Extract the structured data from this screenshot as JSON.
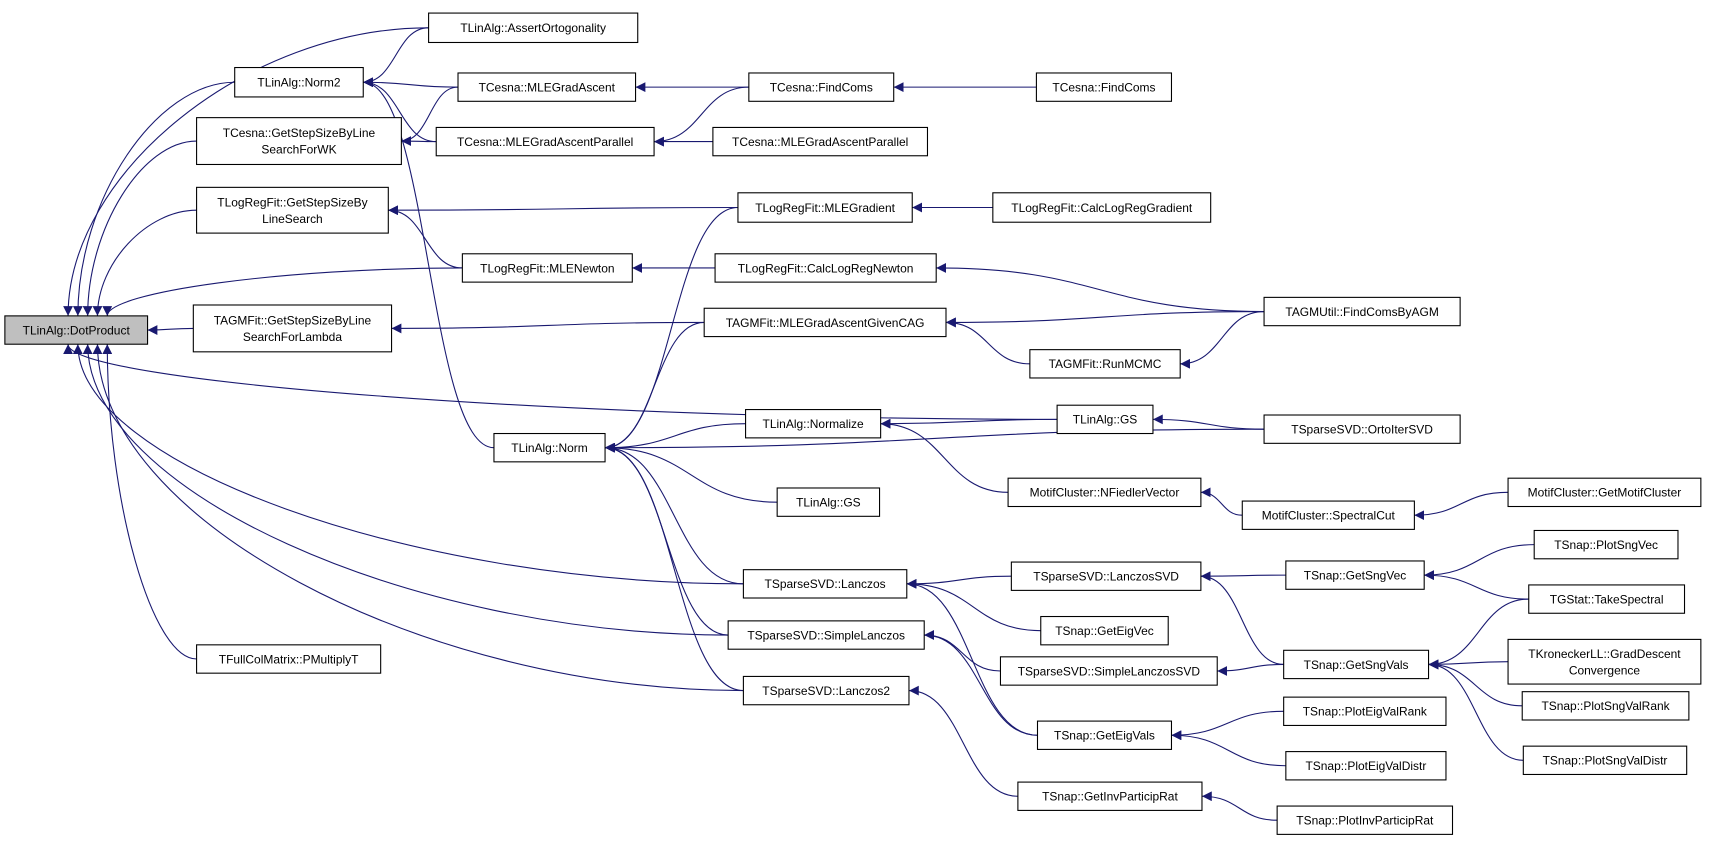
{
  "graph": {
    "type": "caller-graph",
    "root": "dot",
    "colors": {
      "edge": "#191970",
      "root_fill": "#bfbfbf",
      "node_fill": "#ffffff",
      "node_border": "#000000"
    },
    "nodes": [
      {
        "id": "dot",
        "lines": [
          "TLinAlg::DotProduct"
        ]
      },
      {
        "id": "assert",
        "lines": [
          "TLinAlg::AssertOrtogonality"
        ]
      },
      {
        "id": "norm2",
        "lines": [
          "TLinAlg::Norm2"
        ]
      },
      {
        "id": "cesnaStep",
        "lines": [
          "TCesna::GetStepSizeByLine",
          "SearchForWK"
        ]
      },
      {
        "id": "logStep",
        "lines": [
          "TLogRegFit::GetStepSizeBy",
          "LineSearch"
        ]
      },
      {
        "id": "agmStep",
        "lines": [
          "TAGMFit::GetStepSizeByLine",
          "SearchForLambda"
        ]
      },
      {
        "id": "pmult",
        "lines": [
          "TFullColMatrix::PMultiplyT"
        ]
      },
      {
        "id": "norm",
        "lines": [
          "TLinAlg::Norm"
        ]
      },
      {
        "id": "mleGA",
        "lines": [
          "TCesna::MLEGradAscent"
        ]
      },
      {
        "id": "mleGAP",
        "lines": [
          "TCesna::MLEGradAscentParallel"
        ]
      },
      {
        "id": "mleNewton",
        "lines": [
          "TLogRegFit::MLENewton"
        ]
      },
      {
        "id": "findComs1",
        "lines": [
          "TCesna::FindComs"
        ]
      },
      {
        "id": "mleGAP2",
        "lines": [
          "TCesna::MLEGradAscentParallel"
        ]
      },
      {
        "id": "mleGrad",
        "lines": [
          "TLogRegFit::MLEGradient"
        ]
      },
      {
        "id": "calcNewton",
        "lines": [
          "TLogRegFit::CalcLogRegNewton"
        ]
      },
      {
        "id": "mleCAG",
        "lines": [
          "TAGMFit::MLEGradAscentGivenCAG"
        ]
      },
      {
        "id": "normalize",
        "lines": [
          "TLinAlg::Normalize"
        ]
      },
      {
        "id": "gsLow",
        "lines": [
          "TLinAlg::GS"
        ]
      },
      {
        "id": "lanczos",
        "lines": [
          "TSparseSVD::Lanczos"
        ]
      },
      {
        "id": "simpleLanczos",
        "lines": [
          "TSparseSVD::SimpleLanczos"
        ]
      },
      {
        "id": "lanczos2",
        "lines": [
          "TSparseSVD::Lanczos2"
        ]
      },
      {
        "id": "findComs2",
        "lines": [
          "TCesna::FindComs"
        ]
      },
      {
        "id": "calcGrad",
        "lines": [
          "TLogRegFit::CalcLogRegGradient"
        ]
      },
      {
        "id": "runMCMC",
        "lines": [
          "TAGMFit::RunMCMC"
        ]
      },
      {
        "id": "gsUp",
        "lines": [
          "TLinAlg::GS"
        ]
      },
      {
        "id": "fiedler",
        "lines": [
          "MotifCluster::NFiedlerVector"
        ]
      },
      {
        "id": "lanczosSVD",
        "lines": [
          "TSparseSVD::LanczosSVD"
        ]
      },
      {
        "id": "getEigVec",
        "lines": [
          "TSnap::GetEigVec"
        ]
      },
      {
        "id": "simpleLanczosSVD",
        "lines": [
          "TSparseSVD::SimpleLanczosSVD"
        ]
      },
      {
        "id": "getEigVals",
        "lines": [
          "TSnap::GetEigVals"
        ]
      },
      {
        "id": "invPart",
        "lines": [
          "TSnap::GetInvParticipRat"
        ]
      },
      {
        "id": "findByAGM",
        "lines": [
          "TAGMUtil::FindComsByAGM"
        ]
      },
      {
        "id": "ortoIter",
        "lines": [
          "TSparseSVD::OrtoIterSVD"
        ]
      },
      {
        "id": "spectralCut",
        "lines": [
          "MotifCluster::SpectralCut"
        ]
      },
      {
        "id": "getSngVec",
        "lines": [
          "TSnap::GetSngVec"
        ]
      },
      {
        "id": "getSngVals",
        "lines": [
          "TSnap::GetSngVals"
        ]
      },
      {
        "id": "plotEigRank",
        "lines": [
          "TSnap::PlotEigValRank"
        ]
      },
      {
        "id": "plotEigDistr",
        "lines": [
          "TSnap::PlotEigValDistr"
        ]
      },
      {
        "id": "plotInvPart",
        "lines": [
          "TSnap::PlotInvParticipRat"
        ]
      },
      {
        "id": "getMotif",
        "lines": [
          "MotifCluster::GetMotifCluster"
        ]
      },
      {
        "id": "plotSngVec",
        "lines": [
          "TSnap::PlotSngVec"
        ]
      },
      {
        "id": "takeSpectral",
        "lines": [
          "TGStat::TakeSpectral"
        ]
      },
      {
        "id": "kron",
        "lines": [
          "TKroneckerLL::GradDescent",
          "Convergence"
        ]
      },
      {
        "id": "plotSngRank",
        "lines": [
          "TSnap::PlotSngValRank"
        ]
      },
      {
        "id": "plotSngDistr",
        "lines": [
          "TSnap::PlotSngValDistr"
        ]
      }
    ],
    "edges": [
      [
        "assert",
        "dot"
      ],
      [
        "assert",
        "norm2"
      ],
      [
        "norm2",
        "dot"
      ],
      [
        "mleGA",
        "norm2"
      ],
      [
        "mleGAP",
        "norm2"
      ],
      [
        "norm",
        "norm2"
      ],
      [
        "mleGA",
        "cesnaStep"
      ],
      [
        "mleGAP",
        "cesnaStep"
      ],
      [
        "cesnaStep",
        "dot"
      ],
      [
        "findComs1",
        "mleGA"
      ],
      [
        "findComs1",
        "mleGAP"
      ],
      [
        "findComs2",
        "findComs1"
      ],
      [
        "mleGAP2",
        "mleGAP"
      ],
      [
        "logStep",
        "dot"
      ],
      [
        "mleGrad",
        "logStep"
      ],
      [
        "mleNewton",
        "logStep"
      ],
      [
        "mleNewton",
        "dot"
      ],
      [
        "calcGrad",
        "mleGrad"
      ],
      [
        "calcNewton",
        "mleNewton"
      ],
      [
        "findByAGM",
        "calcNewton"
      ],
      [
        "findByAGM",
        "mleCAG"
      ],
      [
        "findByAGM",
        "runMCMC"
      ],
      [
        "runMCMC",
        "mleCAG"
      ],
      [
        "mleCAG",
        "agmStep"
      ],
      [
        "agmStep",
        "dot"
      ],
      [
        "gsUp",
        "dot"
      ],
      [
        "mleGrad",
        "norm"
      ],
      [
        "mleCAG",
        "norm"
      ],
      [
        "normalize",
        "norm"
      ],
      [
        "gsUp",
        "normalize"
      ],
      [
        "ortoIter",
        "gsUp"
      ],
      [
        "ortoIter",
        "norm"
      ],
      [
        "fiedler",
        "normalize"
      ],
      [
        "spectralCut",
        "fiedler"
      ],
      [
        "getMotif",
        "spectralCut"
      ],
      [
        "gsLow",
        "norm"
      ],
      [
        "lanczos",
        "norm"
      ],
      [
        "lanczos",
        "dot"
      ],
      [
        "simpleLanczos",
        "norm"
      ],
      [
        "simpleLanczos",
        "dot"
      ],
      [
        "lanczos2",
        "norm"
      ],
      [
        "lanczos2",
        "dot"
      ],
      [
        "pmult",
        "dot"
      ],
      [
        "lanczosSVD",
        "lanczos"
      ],
      [
        "getEigVec",
        "lanczos"
      ],
      [
        "getEigVals",
        "lanczos"
      ],
      [
        "simpleLanczosSVD",
        "simpleLanczos"
      ],
      [
        "getEigVals",
        "simpleLanczos"
      ],
      [
        "invPart",
        "lanczos2"
      ],
      [
        "getSngVec",
        "lanczosSVD"
      ],
      [
        "getSngVals",
        "lanczosSVD"
      ],
      [
        "getSngVals",
        "simpleLanczosSVD"
      ],
      [
        "plotEigRank",
        "getEigVals"
      ],
      [
        "plotEigDistr",
        "getEigVals"
      ],
      [
        "plotInvPart",
        "invPart"
      ],
      [
        "plotSngVec",
        "getSngVec"
      ],
      [
        "takeSpectral",
        "getSngVec"
      ],
      [
        "takeSpectral",
        "getSngVals"
      ],
      [
        "kron",
        "getSngVals"
      ],
      [
        "plotSngRank",
        "getSngVals"
      ],
      [
        "plotSngDistr",
        "getSngVals"
      ]
    ]
  }
}
